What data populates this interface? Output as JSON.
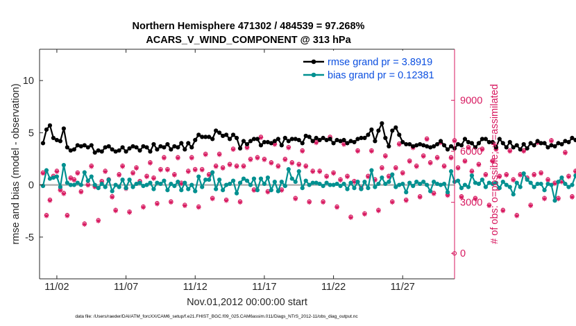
{
  "title_line1": "Northern Hemisphere 471302 / 484539 = 97.268%",
  "title_line2": "ACARS_V_WIND_COMPONENT @ 313 hPa",
  "footer": "data file: /Users/raeder/DAI/ATM_forcXX/CAM6_setup/f.e21.FHIST_BGC.f09_025.CAM6assim.011/Diags_NTrS_2012-11/obs_diag_output.nc",
  "colors": {
    "rmse": "#000000",
    "bias": "#009090",
    "obs": "#D7185F",
    "zero_line": "#AAAAAA"
  },
  "chart_data": {
    "type": "line",
    "xlabel": "Nov.01,2012 00:00:00 start",
    "ylabel": "rmse and bias (model - observation)",
    "ylabel_right": "# of obs: o=possible; ∗=assimilated",
    "xlim": [
      -0.25,
      29.75
    ],
    "ylim": [
      -9,
      13
    ],
    "ylim_right": [
      -1500,
      12000
    ],
    "x_ticks": [
      1,
      6,
      11,
      16,
      21,
      26
    ],
    "x_tick_labels": [
      "11/02",
      "11/07",
      "11/12",
      "11/17",
      "11/22",
      "11/27"
    ],
    "y_ticks": [
      -5,
      0,
      5,
      10
    ],
    "y_tick_labels": [
      "-5",
      "0",
      "5",
      "10"
    ],
    "y_right_ticks": [
      0,
      3000,
      6000,
      9000
    ],
    "y_right_tick_labels": [
      "0",
      "3000",
      "6000",
      "9000"
    ],
    "legend": [
      {
        "label": "rmse grand pr = 3.8919",
        "series": "rmse"
      },
      {
        "label": "bias grand pr = 0.12381",
        "series": "bias"
      }
    ],
    "legend_location": "top-right",
    "x_step": 0.25,
    "series": [
      {
        "name": "rmse",
        "values": [
          4.0,
          5.3,
          5.7,
          4.5,
          4.3,
          4.2,
          5.4,
          3.6,
          3.3,
          3.4,
          3.8,
          3.7,
          3.8,
          3.6,
          3.8,
          3.1,
          3.3,
          3.2,
          3.6,
          3.7,
          3.4,
          3.2,
          3.3,
          3.6,
          3.2,
          3.5,
          3.7,
          3.6,
          3.3,
          3.7,
          3.6,
          3.2,
          3.9,
          3.4,
          3.7,
          3.6,
          3.9,
          3.4,
          3.7,
          3.6,
          4.0,
          3.4,
          4.0,
          3.6,
          4.3,
          4.8,
          4.6,
          4.6,
          4.6,
          4.4,
          5.2,
          5.0,
          4.7,
          4.8,
          4.4,
          4.8,
          4.5,
          3.5,
          4.2,
          3.9,
          4.2,
          4.4,
          4.4,
          3.8,
          4.1,
          4.1,
          4.0,
          4.2,
          4.4,
          3.8,
          4.5,
          4.2,
          4.4,
          4.4,
          4.3,
          4.0,
          4.7,
          4.6,
          4.2,
          4.5,
          4.3,
          4.5,
          4.3,
          4.4,
          4.0,
          4.3,
          4.2,
          4.3,
          4.0,
          4.2,
          4.1,
          4.4,
          4.5,
          4.5,
          4.8,
          5.3,
          4.2,
          5.2,
          5.9,
          4.5,
          3.7,
          5.2,
          5.5,
          4.8,
          4.1,
          3.9,
          3.9,
          3.7,
          3.8,
          3.9,
          3.8,
          3.7,
          3.6,
          3.7,
          3.9,
          4.2,
          3.8,
          3.4,
          3.7,
          3.5,
          3.9,
          3.8,
          4.4,
          4.1,
          4.0,
          3.6,
          4.0,
          4.4,
          4.4,
          4.1,
          4.1,
          3.6,
          4.4,
          4.0,
          3.6,
          4.1,
          3.6,
          3.8,
          3.4,
          3.9,
          3.5,
          4.0,
          3.8,
          4.2,
          4.0,
          4.0,
          3.6,
          3.8,
          3.7,
          4.0,
          3.9,
          4.2,
          4.1,
          4.5,
          4.3,
          4.2,
          4.0,
          3.2,
          3.0,
          3.0,
          3.1,
          3.0,
          3.2,
          3.4,
          3.5,
          3.7,
          3.7,
          3.8,
          3.7,
          3.8,
          3.8,
          3.8,
          3.8,
          3.8,
          3.9,
          4.0,
          5.4,
          4.9,
          4.8,
          4.7,
          4.6,
          4.6,
          4.8,
          3.9,
          4.5,
          4.1,
          4.3,
          4.1,
          4.2,
          4.2,
          4.2,
          4.2
        ]
      },
      {
        "name": "bias",
        "values": [
          -0.1,
          1.4,
          0.6,
          0.7,
          0.8,
          -0.2,
          1.9,
          0.2,
          0.0,
          0.0,
          0.2,
          0.0,
          1.2,
          0.4,
          0.8,
          0.0,
          -0.3,
          0.1,
          -0.2,
          0.5,
          -0.6,
          0.0,
          -0.2,
          0.5,
          -0.3,
          0.5,
          -0.2,
          0.1,
          0.2,
          -0.1,
          0.0,
          0.2,
          -0.4,
          0.2,
          0.1,
          0.4,
          -0.5,
          0.1,
          -0.1,
          0.3,
          -0.5,
          0.2,
          -0.4,
          0.0,
          -0.6,
          0.8,
          -0.2,
          0.5,
          0.5,
          1.2,
          -0.4,
          0.5,
          -0.5,
          0.0,
          0.1,
          0.4,
          -0.8,
          0.2,
          0.6,
          0.4,
          0.0,
          0.6,
          -0.5,
          0.6,
          0.1,
          0.7,
          -0.5,
          0.3,
          -0.6,
          0.3,
          -0.1,
          1.5,
          0.6,
          0.3,
          1.3,
          -0.3,
          0.4,
          0.0,
          0.2,
          0.2,
          0.1,
          -0.1,
          0.2,
          0.0,
          0.0,
          0.1,
          -0.1,
          0.1,
          -0.4,
          0.2,
          -0.3,
          0.3,
          -0.4,
          0.3,
          -0.3,
          1.4,
          -0.2,
          0.1,
          0.7,
          0.1,
          0.3,
          1.0,
          -0.2,
          0.0,
          0.1,
          -0.7,
          0.2,
          -0.1,
          0.3,
          0.1,
          0.3,
          0.0,
          -0.6,
          0.3,
          0.1,
          0.0,
          0.1,
          -0.7,
          1.3,
          0.3,
          0.4,
          -0.3,
          0.0,
          -0.2,
          0.9,
          0.2,
          0.1,
          0.5,
          -0.2,
          0.2,
          0.1,
          0.2,
          -0.3,
          0.3,
          0.0,
          -0.2,
          -0.9,
          0.2,
          -0.2,
          1.1,
          0.5,
          0.2,
          -0.2,
          0.1,
          0.1,
          -0.5,
          0.1,
          0.0,
          -1.5,
          0.3,
          0.7,
          0.1,
          -0.2,
          0.0,
          0.9,
          0.0,
          -1.7,
          0.3,
          0.5,
          0.4,
          0.0,
          -0.3,
          -0.1,
          0.8,
          0.0,
          0.2,
          -0.1,
          0.0,
          0.5,
          -0.3,
          0.2,
          -0.3,
          0.1,
          0.0,
          0.1,
          -0.2,
          0.3,
          0.0,
          2.3,
          0.1,
          -0.3,
          -0.7,
          -0.2,
          0.2,
          0.1,
          0.2,
          0.2,
          0.0,
          -0.3,
          0.7,
          0.5,
          0.3,
          0.5,
          0.5
        ]
      },
      {
        "name": "obs_possible",
        "values": [
          4750,
          2250,
          3150,
          4550,
          4850,
          3750,
          3550,
          2250,
          4450,
          4350,
          4750,
          3650,
          1750,
          4050,
          5150,
          3950,
          1950,
          4250,
          4850,
          4350,
          3350,
          2550,
          4650,
          5150,
          3850,
          2450,
          4750,
          5050,
          4250,
          2750,
          4550,
          5350,
          4450,
          2950,
          4950,
          5650,
          4950,
          3050,
          4650,
          5650,
          4150,
          2850,
          4850,
          5650,
          4950,
          2750,
          4950,
          5850,
          4650,
          3250,
          5150,
          5850,
          5050,
          3150,
          5250,
          6150,
          5150,
          3050,
          5150,
          6250,
          5550,
          3750,
          5650,
          6850,
          5550,
          3650,
          5350,
          6450,
          5150,
          3750,
          5550,
          6250,
          5350,
          3250,
          5250,
          6050,
          5150,
          3050,
          4850,
          6550,
          4850,
          3050,
          4550,
          6850,
          4750,
          2750,
          4350,
          6450,
          4550,
          2150,
          4250,
          6050,
          3850,
          2350,
          4550,
          6050,
          4350,
          2550,
          5050,
          5750,
          4550,
          3050,
          5050,
          6450,
          4750,
          3150,
          5450,
          6250,
          5150,
          3350,
          5750,
          6750,
          5350,
          3550,
          5650,
          6550,
          5150,
          3450,
          5650,
          6650,
          5050,
          3350,
          5450,
          6250,
          4850,
          3250,
          5250,
          6150,
          4650,
          2850,
          5450,
          6150,
          4550,
          2550,
          4650,
          6050,
          4350,
          2250,
          4650,
          6050,
          4450,
          2850,
          4650,
          6550,
          4750,
          3250,
          4350,
          6650,
          4150,
          3250,
          4250,
          5950,
          4550,
          3350,
          4850,
          6050,
          4850,
          3050,
          4950,
          6450,
          4850,
          3350,
          5250,
          6850,
          4950,
          3350,
          5350,
          7150,
          5450,
          3650,
          5450,
          7350,
          5150,
          3550,
          5150,
          7450,
          5050,
          3350,
          5050,
          7150,
          5050,
          3650,
          5450,
          7350,
          5150,
          3450,
          5350,
          7150,
          4850,
          3150,
          5250,
          6750,
          4750,
          3050,
          4850,
          7050
        ]
      },
      {
        "name": "obs_assimilated",
        "values": [
          4700,
          2200,
          3100,
          4500,
          4800,
          3700,
          3500,
          2200,
          4400,
          4300,
          4700,
          3600,
          1700,
          4000,
          5100,
          3900,
          1900,
          4200,
          4800,
          4300,
          3300,
          2500,
          4600,
          5100,
          3800,
          2400,
          4700,
          5000,
          4200,
          2700,
          4500,
          5300,
          4400,
          2900,
          4900,
          5600,
          4900,
          3000,
          4600,
          5600,
          4100,
          2800,
          4800,
          5600,
          4900,
          2700,
          4900,
          5800,
          4600,
          3200,
          5100,
          5800,
          5000,
          3100,
          5200,
          6100,
          5100,
          3000,
          5100,
          6200,
          5500,
          3700,
          5600,
          6800,
          5500,
          3600,
          5300,
          6400,
          5100,
          3700,
          5500,
          6200,
          5300,
          3200,
          5200,
          6000,
          5100,
          3000,
          4800,
          6500,
          4800,
          3000,
          4500,
          6800,
          4700,
          2700,
          4300,
          6400,
          4500,
          2100,
          4200,
          6000,
          3800,
          2300,
          4500,
          6000,
          4300,
          2500,
          5000,
          5700,
          4500,
          3000,
          5000,
          6400,
          4700,
          3100,
          5400,
          6200,
          5100,
          3300,
          5700,
          6700,
          5300,
          3500,
          5600,
          6500,
          5100,
          3400,
          5600,
          6600,
          5000,
          3300,
          5400,
          6200,
          4800,
          3200,
          5200,
          6100,
          4600,
          2800,
          5400,
          6100,
          4500,
          2500,
          4600,
          6000,
          4300,
          2200,
          4600,
          6000,
          4400,
          2800,
          4600,
          6500,
          4700,
          3200,
          4300,
          6600,
          4100,
          3200,
          4200,
          5900,
          4500,
          3300,
          4800,
          6000,
          4800,
          3000,
          4900,
          6400,
          4800,
          3300,
          5200,
          6800,
          4900,
          3300,
          5300,
          7100,
          5400,
          3600,
          5400,
          7300,
          5100,
          3500,
          5100,
          7400,
          5000,
          3300,
          5000,
          7100,
          5000,
          3600,
          5400,
          7300,
          5100,
          3400,
          5300,
          7100,
          4800,
          3100,
          5200,
          6700,
          4700,
          3000,
          4800,
          7000
        ]
      }
    ],
    "obs_markers": {
      "possible": "o",
      "assimilated": "*"
    }
  }
}
